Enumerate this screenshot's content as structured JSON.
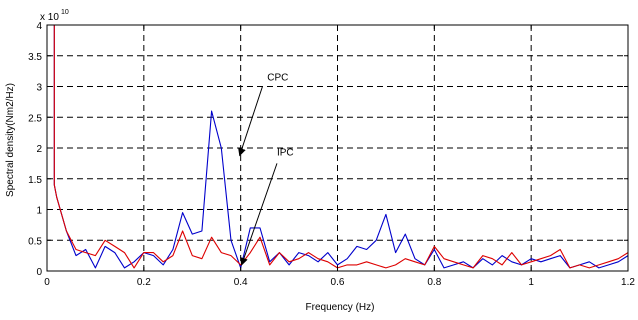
{
  "chart_data": {
    "type": "line",
    "title": "",
    "xlabel": "Frequency (Hz)",
    "ylabel": "Spectral density(Nm2/Hz)",
    "y_multiplier_label": "x 10",
    "y_multiplier_exponent": "10",
    "xlim": [
      0,
      1.2
    ],
    "ylim": [
      0,
      4
    ],
    "xticks": [
      "0",
      "0.2",
      "0.4",
      "0.6",
      "0.8",
      "1",
      "1.2"
    ],
    "yticks": [
      "0",
      "0.5",
      "1",
      "1.5",
      "2",
      "2.5",
      "3",
      "3.5",
      "4"
    ],
    "grid": true,
    "annotations": [
      {
        "text": "CPC",
        "text_at": [
          0.455,
          3.1
        ],
        "arrow_from": [
          0.445,
          3.0
        ],
        "arrow_to": [
          0.398,
          1.88
        ]
      },
      {
        "text": "IPC",
        "text_at": [
          0.475,
          1.88
        ],
        "arrow_from": [
          0.475,
          1.75
        ],
        "arrow_to": [
          0.402,
          0.1
        ]
      }
    ],
    "series": [
      {
        "color": "#0000cc",
        "x": [
          0.015,
          0.015,
          0.02,
          0.04,
          0.06,
          0.08,
          0.1,
          0.12,
          0.14,
          0.16,
          0.18,
          0.2,
          0.22,
          0.24,
          0.26,
          0.28,
          0.3,
          0.32,
          0.34,
          0.36,
          0.38,
          0.4,
          0.42,
          0.44,
          0.46,
          0.48,
          0.5,
          0.52,
          0.54,
          0.56,
          0.58,
          0.6,
          0.62,
          0.64,
          0.66,
          0.68,
          0.7,
          0.72,
          0.74,
          0.76,
          0.78,
          0.8,
          0.82,
          0.84,
          0.86,
          0.88,
          0.9,
          0.92,
          0.94,
          0.96,
          0.98,
          1.0,
          1.02,
          1.04,
          1.06,
          1.08,
          1.1,
          1.12,
          1.14,
          1.16,
          1.18,
          1.2
        ],
        "y": [
          4.0,
          1.4,
          1.2,
          0.65,
          0.25,
          0.35,
          0.05,
          0.4,
          0.3,
          0.05,
          0.15,
          0.3,
          0.25,
          0.1,
          0.35,
          0.95,
          0.6,
          0.65,
          2.6,
          2.0,
          0.5,
          0.05,
          0.7,
          0.7,
          0.15,
          0.3,
          0.1,
          0.3,
          0.25,
          0.15,
          0.3,
          0.1,
          0.2,
          0.4,
          0.35,
          0.5,
          0.92,
          0.3,
          0.6,
          0.2,
          0.1,
          0.35,
          0.05,
          0.1,
          0.15,
          0.05,
          0.2,
          0.1,
          0.25,
          0.15,
          0.1,
          0.2,
          0.15,
          0.2,
          0.25,
          0.05,
          0.1,
          0.15,
          0.05,
          0.1,
          0.15,
          0.25
        ]
      },
      {
        "color": "#dd0000",
        "x": [
          0.015,
          0.015,
          0.02,
          0.04,
          0.06,
          0.08,
          0.1,
          0.12,
          0.14,
          0.16,
          0.18,
          0.2,
          0.22,
          0.24,
          0.26,
          0.28,
          0.3,
          0.32,
          0.34,
          0.36,
          0.38,
          0.4,
          0.42,
          0.44,
          0.46,
          0.48,
          0.5,
          0.52,
          0.54,
          0.56,
          0.58,
          0.6,
          0.62,
          0.64,
          0.66,
          0.68,
          0.7,
          0.72,
          0.74,
          0.76,
          0.78,
          0.8,
          0.82,
          0.84,
          0.86,
          0.88,
          0.9,
          0.92,
          0.94,
          0.96,
          0.98,
          1.0,
          1.02,
          1.04,
          1.06,
          1.08,
          1.1,
          1.12,
          1.14,
          1.16,
          1.18,
          1.2
        ],
        "y": [
          4.0,
          1.4,
          1.2,
          0.65,
          0.35,
          0.3,
          0.25,
          0.5,
          0.4,
          0.3,
          0.05,
          0.3,
          0.3,
          0.15,
          0.25,
          0.65,
          0.25,
          0.2,
          0.55,
          0.3,
          0.25,
          0.1,
          0.3,
          0.55,
          0.1,
          0.3,
          0.15,
          0.2,
          0.3,
          0.2,
          0.15,
          0.05,
          0.1,
          0.1,
          0.15,
          0.1,
          0.05,
          0.1,
          0.2,
          0.15,
          0.1,
          0.4,
          0.2,
          0.15,
          0.1,
          0.05,
          0.25,
          0.2,
          0.1,
          0.3,
          0.1,
          0.15,
          0.2,
          0.25,
          0.35,
          0.05,
          0.1,
          0.05,
          0.1,
          0.15,
          0.2,
          0.3
        ]
      }
    ]
  }
}
